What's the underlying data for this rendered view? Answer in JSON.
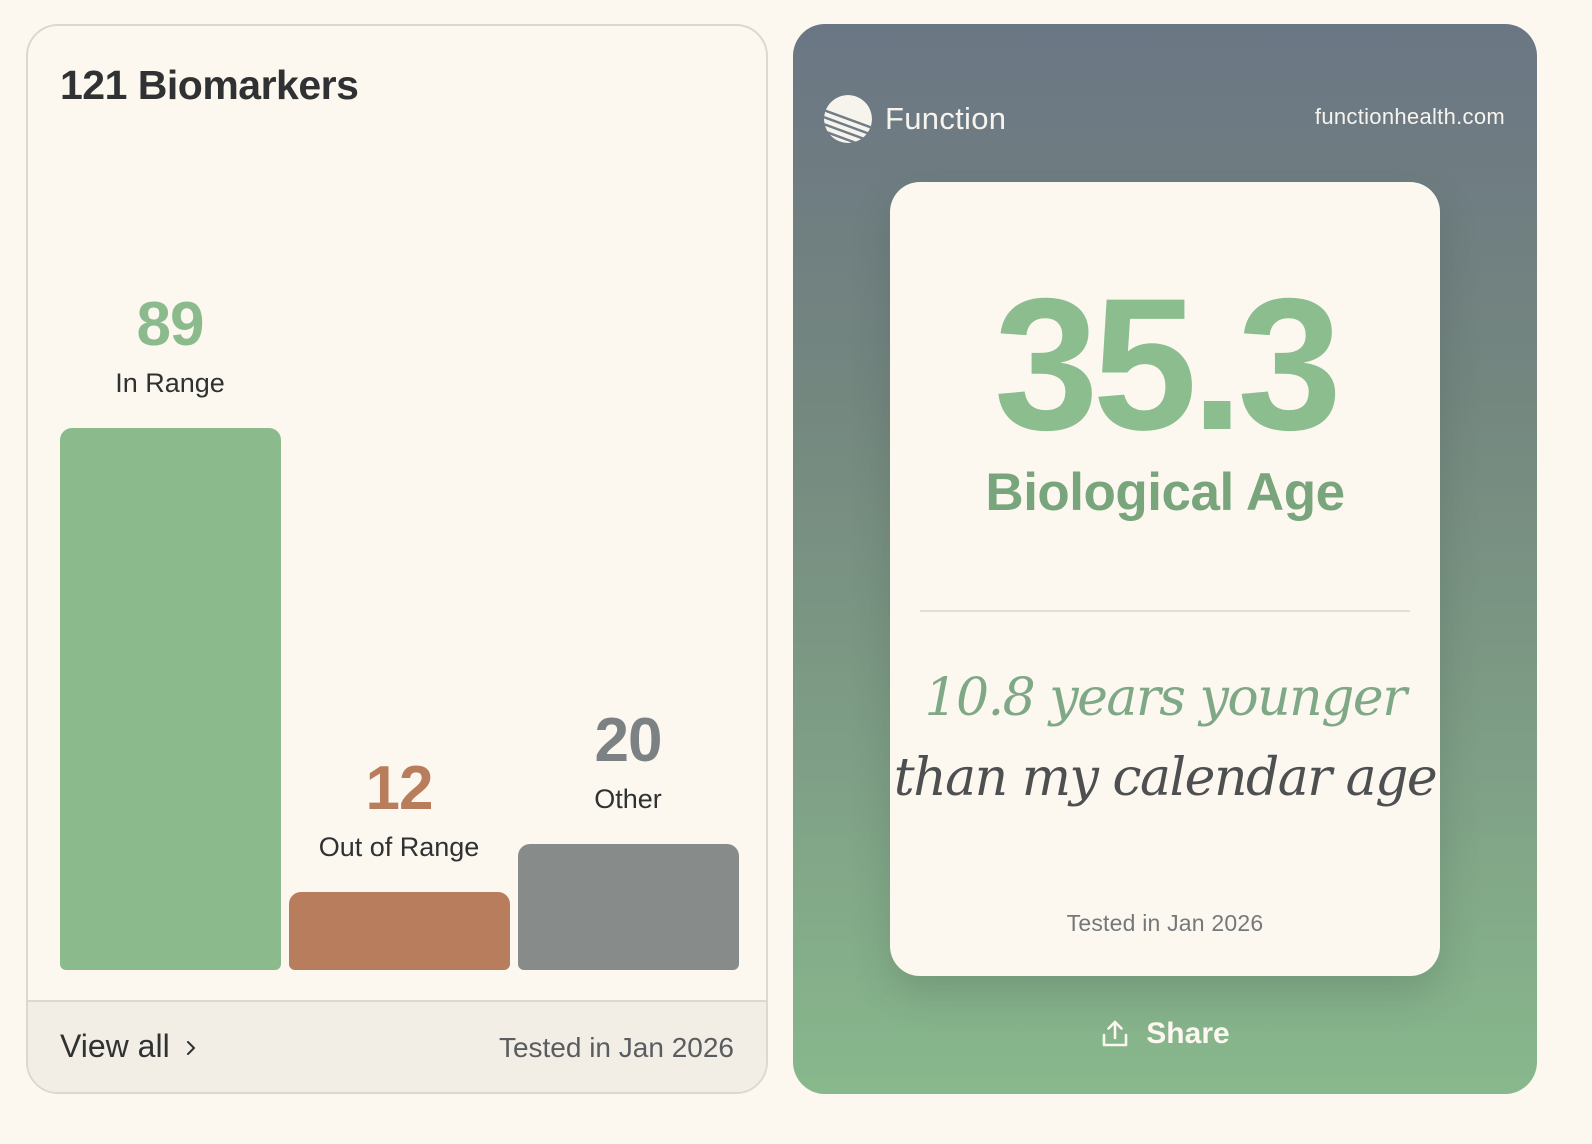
{
  "biomarkers": {
    "title": "121 Biomarkers",
    "footer": {
      "view_all_label": "View all",
      "tested_label": "Tested in Jan 2026"
    }
  },
  "chart_data": {
    "type": "bar",
    "title": "121 Biomarkers",
    "categories": [
      "In Range",
      "Out of Range",
      "Other"
    ],
    "values": [
      89,
      12,
      20
    ],
    "colors": [
      "#8bbb8d",
      "#b87d5d",
      "#878c8b"
    ],
    "value_label_colors": [
      "#8bbb8d",
      "#b87d5d",
      "#7c8183"
    ],
    "ylim": [
      0,
      89
    ],
    "grid": false,
    "legend": "none"
  },
  "share_card": {
    "brand_name": "Function",
    "brand_url": "functionhealth.com",
    "biological_age": "35.3",
    "biological_age_label": "Biological Age",
    "younger_line1": "10.8 years younger",
    "younger_line2": "than my calendar age",
    "tested_label": "Tested in Jan 2026",
    "share_label": "Share",
    "accent_color": "#8cbd8e"
  }
}
